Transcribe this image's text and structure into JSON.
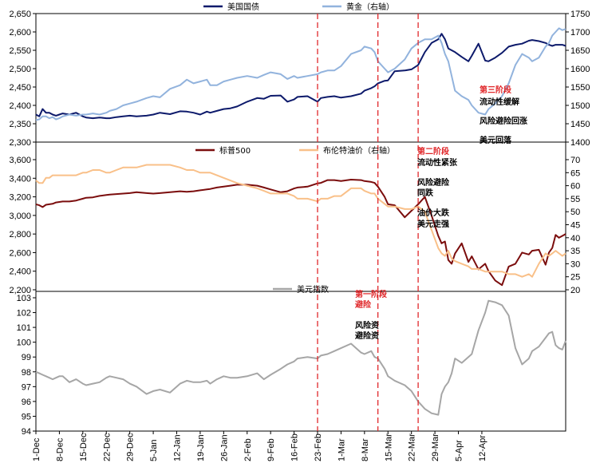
{
  "colors": {
    "us10y": "#0d1a6b",
    "gold": "#92b3dd",
    "sp500": "#7b0d0d",
    "brent": "#f9c089",
    "dxy": "#a6a6a6",
    "phase_line": "#e0282b",
    "phase_title": "#e0282b",
    "axis": "#000000"
  },
  "chart_data": [
    {
      "type": "line",
      "panel": "top",
      "ylim_left": [
        2300,
        2650
      ],
      "ylim_right": [
        1400,
        1750
      ],
      "yticks_left": [
        "2,300",
        "2,350",
        "2,400",
        "2,450",
        "2,500",
        "2,550",
        "2,600",
        "2,650"
      ],
      "yticks_right": [
        "1400",
        "1450",
        "1500",
        "1550",
        "1600",
        "1650",
        "1700",
        "1750"
      ],
      "series": [
        {
          "name": "美国国债",
          "axis": "left",
          "color_key": "us10y",
          "x": [
            0,
            1,
            2,
            3,
            4,
            5,
            6,
            7,
            8,
            10,
            12,
            14,
            15,
            17,
            19,
            21,
            22,
            24,
            26,
            28,
            30,
            33,
            35,
            37,
            40,
            43,
            45,
            47,
            49,
            51,
            52,
            54,
            56,
            58,
            60,
            63,
            66,
            68,
            70,
            73,
            75,
            77,
            78,
            81,
            84,
            85,
            87,
            89,
            91,
            94,
            97,
            98,
            100,
            101,
            102,
            104,
            105,
            107,
            110,
            112,
            114,
            116,
            118,
            120,
            121,
            122,
            123,
            124,
            125,
            127,
            129,
            130,
            132,
            134,
            135,
            137,
            139,
            141,
            143,
            145,
            147,
            148,
            150,
            152,
            153,
            154,
            155,
            156,
            157,
            158
          ],
          "y": [
            2375,
            2370,
            2390,
            2380,
            2380,
            2375,
            2372,
            2375,
            2378,
            2375,
            2380,
            2370,
            2367,
            2365,
            2367,
            2365,
            2365,
            2368,
            2370,
            2372,
            2370,
            2372,
            2375,
            2380,
            2376,
            2384,
            2383,
            2380,
            2375,
            2383,
            2380,
            2385,
            2390,
            2392,
            2397,
            2410,
            2420,
            2418,
            2426,
            2427,
            2410,
            2416,
            2423,
            2425,
            2410,
            2420,
            2423,
            2425,
            2421,
            2425,
            2432,
            2440,
            2447,
            2452,
            2460,
            2467,
            2468,
            2493,
            2495,
            2498,
            2510,
            2545,
            2570,
            2580,
            2595,
            2580,
            2555,
            2550,
            2545,
            2532,
            2520,
            2535,
            2568,
            2522,
            2520,
            2530,
            2543,
            2560,
            2565,
            2568,
            2576,
            2578,
            2575,
            2570,
            2565,
            2562,
            2565,
            2565,
            2565,
            2562
          ]
        },
        {
          "name": "黄金（右轴）",
          "axis": "right",
          "color_key": "gold",
          "x": [
            0,
            1,
            2,
            3,
            4,
            5,
            6,
            7,
            8,
            10,
            12,
            14,
            15,
            17,
            19,
            21,
            22,
            24,
            26,
            28,
            30,
            33,
            35,
            37,
            40,
            43,
            45,
            47,
            49,
            51,
            52,
            54,
            56,
            58,
            60,
            63,
            66,
            68,
            70,
            73,
            75,
            77,
            78,
            81,
            84,
            85,
            87,
            89,
            91,
            94,
            97,
            98,
            100,
            101,
            102,
            104,
            105,
            107,
            110,
            112,
            114,
            116,
            118,
            120,
            121,
            122,
            123,
            124,
            125,
            127,
            129,
            130,
            132,
            134,
            135,
            137,
            139,
            141,
            143,
            145,
            147,
            148,
            150,
            152,
            153,
            154,
            155,
            156,
            157,
            158
          ],
          "y": [
            1460,
            1462,
            1470,
            1470,
            1465,
            1468,
            1462,
            1465,
            1470,
            1475,
            1472,
            1475,
            1475,
            1478,
            1475,
            1480,
            1485,
            1490,
            1500,
            1505,
            1510,
            1520,
            1525,
            1522,
            1545,
            1555,
            1570,
            1560,
            1565,
            1570,
            1555,
            1555,
            1565,
            1570,
            1575,
            1580,
            1575,
            1583,
            1590,
            1585,
            1572,
            1580,
            1575,
            1580,
            1585,
            1590,
            1595,
            1595,
            1607,
            1640,
            1650,
            1660,
            1655,
            1645,
            1620,
            1600,
            1590,
            1600,
            1625,
            1655,
            1670,
            1680,
            1680,
            1690,
            1670,
            1640,
            1620,
            1580,
            1540,
            1525,
            1515,
            1500,
            1480,
            1475,
            1490,
            1505,
            1525,
            1560,
            1610,
            1640,
            1630,
            1620,
            1630,
            1660,
            1670,
            1690,
            1700,
            1710,
            1705,
            1708
          ]
        }
      ],
      "legend": [
        {
          "label": "美国国债",
          "color_key": "us10y"
        },
        {
          "label": "黄金（右轴）",
          "color_key": "gold"
        }
      ]
    },
    {
      "type": "line",
      "panel": "middle",
      "ylim_left": [
        2200,
        3600
      ],
      "ylim_right": [
        20,
        70
      ],
      "yticks_left": [
        "2,200",
        "2,400",
        "2,600",
        "2,800",
        "3,000",
        "3,200",
        "3,400",
        "3,600"
      ],
      "yticks_right": [
        "20",
        "25",
        "30",
        "35",
        "40",
        "45",
        "50",
        "55",
        "60",
        "65",
        "70"
      ],
      "series": [
        {
          "name": "标普500",
          "axis": "left",
          "color_key": "sp500",
          "x": [
            0,
            1,
            2,
            3,
            4,
            5,
            6,
            7,
            8,
            10,
            12,
            14,
            15,
            17,
            19,
            21,
            22,
            24,
            26,
            28,
            30,
            33,
            35,
            37,
            40,
            43,
            45,
            47,
            49,
            51,
            52,
            54,
            56,
            58,
            60,
            63,
            66,
            68,
            70,
            73,
            75,
            77,
            78,
            81,
            84,
            85,
            87,
            89,
            91,
            94,
            97,
            98,
            100,
            101,
            102,
            104,
            105,
            107,
            110,
            112,
            114,
            116,
            118,
            120,
            121,
            122,
            123,
            124,
            125,
            127,
            129,
            130,
            132,
            134,
            135,
            137,
            139,
            141,
            143,
            145,
            147,
            148,
            150,
            152,
            153,
            154,
            155,
            156,
            157,
            158
          ],
          "y": [
            3120,
            3110,
            3090,
            3115,
            3120,
            3125,
            3140,
            3145,
            3150,
            3150,
            3160,
            3180,
            3190,
            3195,
            3210,
            3220,
            3225,
            3230,
            3235,
            3240,
            3250,
            3240,
            3235,
            3240,
            3250,
            3260,
            3255,
            3260,
            3270,
            3280,
            3285,
            3300,
            3310,
            3320,
            3330,
            3330,
            3320,
            3300,
            3280,
            3250,
            3260,
            3290,
            3300,
            3310,
            3345,
            3350,
            3380,
            3380,
            3370,
            3385,
            3380,
            3370,
            3360,
            3350,
            3310,
            3200,
            3120,
            3110,
            2980,
            3050,
            3120,
            3200,
            3000,
            2780,
            2700,
            2720,
            2520,
            2480,
            2590,
            2700,
            2500,
            2560,
            2420,
            2480,
            2400,
            2300,
            2250,
            2450,
            2480,
            2600,
            2580,
            2620,
            2630,
            2470,
            2600,
            2650,
            2790,
            2760,
            2780,
            2800
          ]
        },
        {
          "name": "布伦特油价（右轴）",
          "axis": "right",
          "color_key": "brent",
          "x": [
            0,
            1,
            2,
            3,
            4,
            5,
            6,
            7,
            8,
            10,
            12,
            14,
            15,
            17,
            19,
            21,
            22,
            24,
            26,
            28,
            30,
            33,
            35,
            37,
            40,
            43,
            45,
            47,
            49,
            51,
            52,
            54,
            56,
            58,
            60,
            63,
            66,
            68,
            70,
            73,
            75,
            77,
            78,
            81,
            84,
            85,
            87,
            89,
            91,
            94,
            97,
            98,
            100,
            101,
            102,
            104,
            105,
            107,
            110,
            112,
            114,
            116,
            118,
            120,
            121,
            122,
            123,
            124,
            125,
            127,
            129,
            130,
            132,
            134,
            135,
            137,
            139,
            141,
            143,
            145,
            147,
            148,
            150,
            152,
            153,
            154,
            155,
            156,
            157,
            158
          ],
          "y": [
            62,
            61,
            61,
            63,
            63,
            64,
            64,
            64,
            64,
            64,
            64,
            65,
            65,
            66,
            66,
            65,
            65,
            66,
            67,
            67,
            67,
            68,
            68,
            68,
            68,
            67,
            66,
            66,
            65,
            65,
            65,
            64,
            63,
            62,
            61,
            60,
            59,
            58,
            57,
            57,
            57,
            56,
            55,
            55,
            54,
            55,
            55,
            56,
            56,
            59,
            59,
            58,
            57,
            57,
            55,
            53,
            52,
            52,
            51,
            51,
            52,
            50,
            43,
            36,
            34,
            33,
            35,
            32,
            31,
            30,
            29,
            28,
            28,
            27,
            27,
            27,
            27,
            26,
            26,
            25,
            26,
            25,
            30,
            34,
            33,
            34,
            35,
            34,
            33,
            34
          ]
        }
      ],
      "legend": [
        {
          "label": "标普500",
          "color_key": "sp500"
        },
        {
          "label": "布伦特油价（右轴）",
          "color_key": "brent"
        }
      ]
    },
    {
      "type": "line",
      "panel": "bottom",
      "ylim_left": [
        94,
        103
      ],
      "yticks_left": [
        "94",
        "95",
        "96",
        "97",
        "98",
        "99",
        "100",
        "101",
        "102",
        "103"
      ],
      "series": [
        {
          "name": "美元指数",
          "axis": "left",
          "color_key": "dxy",
          "x": [
            0,
            1,
            2,
            3,
            4,
            5,
            6,
            7,
            8,
            10,
            12,
            14,
            15,
            17,
            19,
            21,
            22,
            24,
            26,
            28,
            30,
            33,
            35,
            37,
            40,
            43,
            45,
            47,
            49,
            51,
            52,
            54,
            56,
            58,
            60,
            63,
            66,
            68,
            70,
            73,
            75,
            77,
            78,
            81,
            84,
            85,
            87,
            89,
            91,
            94,
            97,
            98,
            100,
            101,
            102,
            104,
            105,
            107,
            110,
            112,
            114,
            116,
            118,
            120,
            121,
            122,
            123,
            124,
            125,
            127,
            129,
            130,
            132,
            134,
            135,
            137,
            139,
            141,
            143,
            145,
            147,
            148,
            150,
            152,
            153,
            154,
            155,
            156,
            157,
            158
          ],
          "y": [
            98.0,
            97.9,
            97.8,
            97.7,
            97.6,
            97.5,
            97.6,
            97.7,
            97.7,
            97.3,
            97.5,
            97.2,
            97.1,
            97.2,
            97.3,
            97.6,
            97.7,
            97.6,
            97.5,
            97.2,
            97.0,
            96.5,
            96.7,
            96.8,
            96.6,
            97.2,
            97.4,
            97.3,
            97.3,
            97.4,
            97.2,
            97.5,
            97.7,
            97.6,
            97.6,
            97.7,
            97.9,
            97.5,
            97.8,
            98.2,
            98.5,
            98.7,
            98.9,
            99.0,
            98.9,
            99.1,
            99.2,
            99.4,
            99.6,
            99.9,
            99.3,
            99.2,
            99.4,
            99.0,
            98.9,
            98.2,
            97.7,
            97.4,
            97.1,
            96.7,
            96.0,
            95.5,
            95.2,
            95.1,
            96.5,
            97.0,
            97.3,
            97.9,
            98.9,
            98.6,
            99.0,
            99.2,
            100.8,
            102.0,
            102.8,
            102.7,
            102.5,
            101.8,
            99.6,
            98.5,
            98.9,
            99.4,
            99.7,
            100.3,
            100.6,
            100.7,
            99.8,
            99.6,
            99.5,
            100.1
          ]
        }
      ],
      "legend": [
        {
          "label": "美元指数",
          "color_key": "dxy"
        }
      ]
    }
  ],
  "x_axis": {
    "labels": [
      "1-Dec",
      "8-Dec",
      "15-Dec",
      "22-Dec",
      "29-Dec",
      "5-Jan",
      "12-Jan",
      "19-Jan",
      "26-Jan",
      "2-Feb",
      "9-Feb",
      "16-Feb",
      "23-Feb",
      "1-Mar",
      "8-Mar",
      "15-Mar",
      "22-Mar",
      "29-Mar",
      "5-Apr",
      "12-Apr"
    ],
    "label_positions": [
      0,
      7,
      14,
      21,
      28,
      35,
      42,
      49,
      56,
      63,
      70,
      77,
      84,
      91,
      98,
      105,
      112,
      119,
      126,
      133
    ]
  },
  "phases": [
    {
      "x": 84
    },
    {
      "x": 102
    },
    {
      "x": 114
    }
  ],
  "annotations": {
    "phase1_title": "第一阶段",
    "phase1_sub": "避险",
    "phase1_note1": "风险资",
    "phase1_note2": "避险资",
    "phase2_title": "第二阶段",
    "phase2_sub": "流动性紧张",
    "phase2_note1": "风险避险",
    "phase2_note2": "同跌",
    "phase2_note3": "油价大跌",
    "phase2_note4": "美元走强",
    "phase3_title": "第三阶段",
    "phase3_sub": "流动性缓解",
    "phase3_note1": "风险避险回涨",
    "phase3_note2": "美元回落"
  }
}
